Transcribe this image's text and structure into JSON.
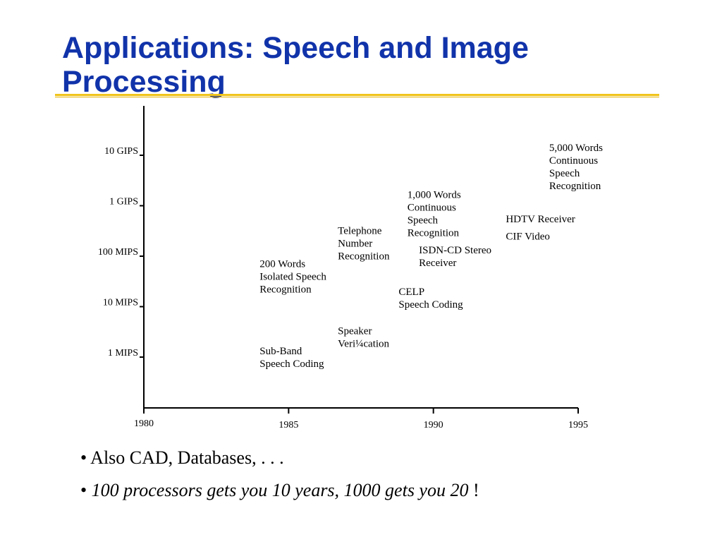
{
  "slide": {
    "title_line1": "Applications: Speech and Image",
    "title_line2": "Processing",
    "title_color": "#1133aa",
    "rule_color": "#f0c419"
  },
  "chart_data": {
    "type": "scatter",
    "x_ticks": [
      "1980",
      "1985",
      "1990",
      "1995"
    ],
    "x_range": [
      1980,
      1995
    ],
    "y_ticks": [
      "1 MIPS",
      "10 MIPS",
      "100 MIPS",
      "1 GIPS",
      "10 GIPS"
    ],
    "y_scale": "log",
    "grid": false,
    "annotations": [
      {
        "lines": [
          "Sub-Band",
          "Speech Coding"
        ],
        "x": 1984.0,
        "y_mips": 1.0
      },
      {
        "lines": [
          "200 Words",
          "Isolated Speech",
          "Recognition"
        ],
        "x": 1984.0,
        "y_mips": 40
      },
      {
        "lines": [
          "Speaker",
          "Veri¼cation"
        ],
        "x": 1986.7,
        "y_mips": 2.5
      },
      {
        "lines": [
          "Telephone",
          "Number",
          "Recognition"
        ],
        "x": 1986.7,
        "y_mips": 180
      },
      {
        "lines": [
          "CELP",
          "Speech Coding"
        ],
        "x": 1988.8,
        "y_mips": 15
      },
      {
        "lines": [
          "1,000 Words",
          "Continuous",
          "Speech",
          "Recognition"
        ],
        "x": 1989.1,
        "y_mips": 700
      },
      {
        "lines": [
          "ISDN-CD Stereo",
          "Receiver"
        ],
        "x": 1989.5,
        "y_mips": 100
      },
      {
        "lines": [
          "HDTV Receiver"
        ],
        "x": 1992.5,
        "y_mips": 550
      },
      {
        "lines": [
          "CIF Video"
        ],
        "x": 1992.5,
        "y_mips": 250
      },
      {
        "lines": [
          "5,000 Words",
          "Continuous",
          "Speech",
          "Recognition"
        ],
        "x": 1994.0,
        "y_mips": 6000
      }
    ]
  },
  "bullets": {
    "b1": "Also CAD, Databases, . . .",
    "b2_italic": "100 processors gets you 10 years, 1000 gets you 20",
    "b2_tail": " !"
  }
}
